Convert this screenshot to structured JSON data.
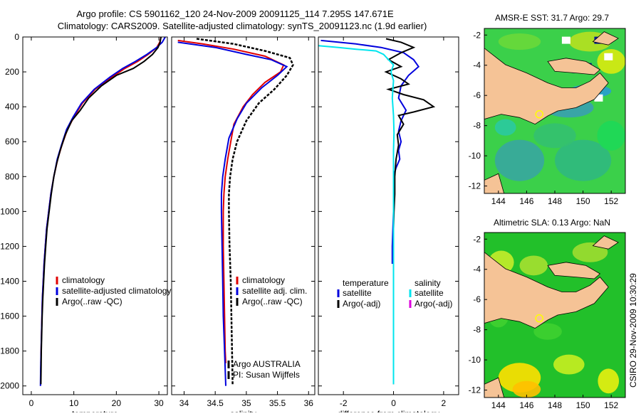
{
  "title_line1": "Argo profile: CS 5901162_120 24-Nov-2009 20091125_114 7.295S 147.671E",
  "title_line2": "Climatology: CARS2009. Satellite-adjusted climatology: synTS_20091123.nc (1.9d earlier)",
  "stamp": "CSIRO 29-Nov-2009 10:30:29",
  "colors": {
    "red": "#e00000",
    "blue": "#0000dd",
    "black": "#000000",
    "cyan": "#00e5ee",
    "magenta": "#dd00dd",
    "land": "#f5c396"
  },
  "chart_data": [
    {
      "type": "line",
      "name": "temperature-panel",
      "xlabel": "temperature",
      "xlim": [
        -2,
        32
      ],
      "ylim": [
        0,
        2050
      ],
      "xticks": [
        0,
        10,
        20,
        30
      ],
      "yticks": [
        0,
        200,
        400,
        600,
        800,
        1000,
        1200,
        1400,
        1600,
        1800,
        2000
      ],
      "legend": [
        "climatology",
        "satellite-adjusted climatology",
        "Argo(..raw -QC)"
      ],
      "series": [
        {
          "name": "climatology",
          "color": "red",
          "dash": "",
          "points": [
            [
              30.5,
              0
            ],
            [
              30.2,
              30
            ],
            [
              29.5,
              60
            ],
            [
              27.5,
              100
            ],
            [
              25,
              140
            ],
            [
              22,
              180
            ],
            [
              19,
              230
            ],
            [
              15,
              300
            ],
            [
              12,
              380
            ],
            [
              10,
              460
            ],
            [
              8.5,
              530
            ],
            [
              7.2,
              620
            ],
            [
              6.2,
              700
            ],
            [
              5.3,
              800
            ],
            [
              4.6,
              900
            ],
            [
              4.1,
              1000
            ],
            [
              3.6,
              1100
            ],
            [
              3.3,
              1200
            ],
            [
              3,
              1300
            ],
            [
              2.8,
              1400
            ],
            [
              2.6,
              1500
            ],
            [
              2.5,
              1600
            ],
            [
              2.4,
              1700
            ],
            [
              2.3,
              1800
            ],
            [
              2.25,
              1870
            ]
          ]
        },
        {
          "name": "satellite-adjusted climatology",
          "color": "blue",
          "dash": "",
          "points": [
            [
              31.5,
              0
            ],
            [
              30.8,
              30
            ],
            [
              29.5,
              60
            ],
            [
              27.2,
              100
            ],
            [
              24.5,
              140
            ],
            [
              21.5,
              180
            ],
            [
              18.5,
              230
            ],
            [
              14.8,
              300
            ],
            [
              11.8,
              380
            ],
            [
              9.8,
              460
            ],
            [
              8.3,
              530
            ],
            [
              7.1,
              620
            ],
            [
              6.1,
              700
            ],
            [
              5.3,
              800
            ],
            [
              4.6,
              900
            ],
            [
              4.1,
              1000
            ],
            [
              3.6,
              1100
            ],
            [
              3.3,
              1200
            ],
            [
              3,
              1300
            ],
            [
              2.8,
              1400
            ],
            [
              2.6,
              1500
            ],
            [
              2.5,
              1600
            ],
            [
              2.4,
              1700
            ],
            [
              2.3,
              1800
            ],
            [
              2.2,
              1900
            ],
            [
              2.15,
              2000
            ]
          ]
        },
        {
          "name": "Argo(..raw -QC)",
          "color": "black",
          "dash": "",
          "points": [
            [
              30.5,
              0
            ],
            [
              30.3,
              30
            ],
            [
              29.8,
              60
            ],
            [
              28.5,
              100
            ],
            [
              26.5,
              140
            ],
            [
              24,
              180
            ],
            [
              20,
              220
            ],
            [
              16.5,
              280
            ],
            [
              13.5,
              350
            ],
            [
              11.5,
              420
            ],
            [
              9.5,
              480
            ],
            [
              8,
              560
            ],
            [
              6.8,
              650
            ],
            [
              6,
              720
            ],
            [
              5.3,
              800
            ],
            [
              4.7,
              900
            ],
            [
              4.2,
              1000
            ],
            [
              3.7,
              1100
            ],
            [
              3.4,
              1200
            ],
            [
              3.1,
              1300
            ],
            [
              2.9,
              1400
            ],
            [
              2.7,
              1500
            ],
            [
              2.55,
              1600
            ],
            [
              2.45,
              1700
            ],
            [
              2.35,
              1800
            ],
            [
              2.3,
              1900
            ],
            [
              2.25,
              1990
            ]
          ]
        }
      ]
    },
    {
      "type": "line",
      "name": "salinity-panel",
      "xlabel": "salinity",
      "xlim": [
        33.8,
        36.1
      ],
      "ylim": [
        0,
        2050
      ],
      "xticks": [
        34,
        34.5,
        35,
        35.5,
        36
      ],
      "legend": [
        "climatology",
        "satellite adj. clim.",
        "Argo(..raw -QC)"
      ],
      "annotation": [
        "Argo AUSTRALIA",
        "PI: Susan Wijffels"
      ],
      "series": [
        {
          "name": "climatology",
          "color": "red",
          "dash": "",
          "points": [
            [
              33.9,
              20
            ],
            [
              34.3,
              40
            ],
            [
              34.8,
              70
            ],
            [
              35.3,
              110
            ],
            [
              35.6,
              160
            ],
            [
              35.55,
              200
            ],
            [
              35.3,
              260
            ],
            [
              35.1,
              330
            ],
            [
              34.95,
              400
            ],
            [
              34.8,
              500
            ],
            [
              34.75,
              600
            ],
            [
              34.7,
              700
            ],
            [
              34.66,
              800
            ],
            [
              34.64,
              900
            ],
            [
              34.63,
              1000
            ],
            [
              34.63,
              1200
            ],
            [
              34.64,
              1400
            ],
            [
              34.65,
              1600
            ],
            [
              34.66,
              1800
            ],
            [
              34.67,
              1870
            ]
          ]
        },
        {
          "name": "satellite adj. clim.",
          "color": "blue",
          "dash": "",
          "points": [
            [
              33.9,
              30
            ],
            [
              34.5,
              60
            ],
            [
              35,
              100
            ],
            [
              35.4,
              130
            ],
            [
              35.65,
              170
            ],
            [
              35.5,
              220
            ],
            [
              35.25,
              290
            ],
            [
              35,
              380
            ],
            [
              34.85,
              470
            ],
            [
              34.72,
              580
            ],
            [
              34.66,
              700
            ],
            [
              34.62,
              800
            ],
            [
              34.6,
              900
            ],
            [
              34.6,
              1000
            ],
            [
              34.61,
              1200
            ],
            [
              34.62,
              1400
            ],
            [
              34.63,
              1600
            ],
            [
              34.65,
              1800
            ],
            [
              34.67,
              2000
            ]
          ]
        },
        {
          "name": "Argo(..raw -QC)",
          "color": "black",
          "dash": "4,2",
          "points": [
            [
              34.2,
              10
            ],
            [
              34.8,
              40
            ],
            [
              35.3,
              80
            ],
            [
              35.7,
              120
            ],
            [
              35.75,
              160
            ],
            [
              35.65,
              220
            ],
            [
              35.45,
              300
            ],
            [
              35.2,
              380
            ],
            [
              35,
              480
            ],
            [
              34.85,
              600
            ],
            [
              34.78,
              700
            ],
            [
              34.74,
              800
            ],
            [
              34.72,
              900
            ],
            [
              34.72,
              1000
            ],
            [
              34.73,
              1200
            ],
            [
              34.75,
              1400
            ],
            [
              34.76,
              1600
            ],
            [
              34.77,
              1800
            ],
            [
              34.78,
              1990
            ]
          ]
        }
      ]
    },
    {
      "type": "line",
      "name": "difference-panel",
      "xlabel": "difference from climatology",
      "xlim": [
        -3,
        2.6
      ],
      "ylim": [
        0,
        2050
      ],
      "xticks": [
        -2,
        0,
        2
      ],
      "legend_left_title": "temperature",
      "legend_right_title": "salinity",
      "legend_left": [
        "satellite",
        "Argo(-adj)"
      ],
      "legend_right": [
        "satellite",
        "Argo(-adj)"
      ],
      "series": [
        {
          "name": "temperature satellite",
          "color": "blue",
          "dash": "",
          "points": [
            [
              -2.9,
              20
            ],
            [
              -1.5,
              40
            ],
            [
              -0.5,
              60
            ],
            [
              0.4,
              90
            ],
            [
              0.8,
              130
            ],
            [
              1.0,
              170
            ],
            [
              0.6,
              220
            ],
            [
              0.3,
              280
            ],
            [
              0.2,
              350
            ],
            [
              0.5,
              420
            ],
            [
              0.3,
              480
            ],
            [
              0.2,
              540
            ],
            [
              0.3,
              600
            ],
            [
              0.2,
              650
            ],
            [
              0.25,
              700
            ],
            [
              0.1,
              750
            ],
            [
              0,
              800
            ],
            [
              0,
              1000
            ],
            [
              -0.05,
              1200
            ],
            [
              -0.05,
              1300
            ]
          ]
        },
        {
          "name": "temperature Argo(-adj)",
          "color": "black",
          "dash": "",
          "points": [
            [
              -0.3,
              10
            ],
            [
              0.3,
              30
            ],
            [
              0.8,
              60
            ],
            [
              0.3,
              90
            ],
            [
              -0.2,
              130
            ],
            [
              0.3,
              170
            ],
            [
              -0.3,
              200
            ],
            [
              0.3,
              240
            ],
            [
              0.6,
              270
            ],
            [
              -0.2,
              300
            ],
            [
              0.4,
              330
            ],
            [
              1.2,
              360
            ],
            [
              1.6,
              400
            ],
            [
              0.8,
              430
            ],
            [
              0.2,
              450
            ],
            [
              0.4,
              500
            ],
            [
              0.15,
              560
            ],
            [
              0.2,
              620
            ],
            [
              0.1,
              700
            ],
            [
              0.05,
              800
            ],
            [
              0.05,
              900
            ],
            [
              0.02,
              1000
            ],
            [
              0,
              1100
            ],
            [
              0,
              1400
            ],
            [
              0,
              1700
            ],
            [
              0,
              1990
            ]
          ]
        },
        {
          "name": "salinity satellite",
          "color": "cyan",
          "dash": "",
          "points": [
            [
              -3,
              50
            ],
            [
              -2.2,
              60
            ],
            [
              -1.5,
              70
            ],
            [
              -0.7,
              80
            ],
            [
              -0.4,
              100
            ],
            [
              -0.2,
              130
            ],
            [
              0,
              160
            ],
            [
              -0.1,
              200
            ],
            [
              0,
              250
            ],
            [
              -0.05,
              350
            ],
            [
              0,
              450
            ],
            [
              0.02,
              550
            ],
            [
              0,
              650
            ],
            [
              0,
              800
            ],
            [
              0,
              1000
            ],
            [
              0,
              1200
            ],
            [
              0,
              1400
            ],
            [
              0,
              1600
            ],
            [
              0,
              1800
            ],
            [
              0,
              1990
            ]
          ]
        },
        {
          "name": "salinity Argo(-adj)",
          "color": "magenta",
          "dash": "",
          "points": []
        }
      ]
    }
  ],
  "maps": [
    {
      "title": "AMSR-E SST: 31.7 Argo: 29.7",
      "xticks": [
        "144",
        "146",
        "148",
        "150",
        "152"
      ],
      "yticks": [
        "-2",
        "-4",
        "-6",
        "-8",
        "-10",
        "-12"
      ]
    },
    {
      "title": "Altimetric SLA: 0.13 Argo: NaN",
      "xticks": [
        "144",
        "146",
        "148",
        "150",
        "152"
      ],
      "yticks": [
        "-2",
        "-4",
        "-6",
        "-8",
        "-10",
        "-12"
      ]
    }
  ]
}
